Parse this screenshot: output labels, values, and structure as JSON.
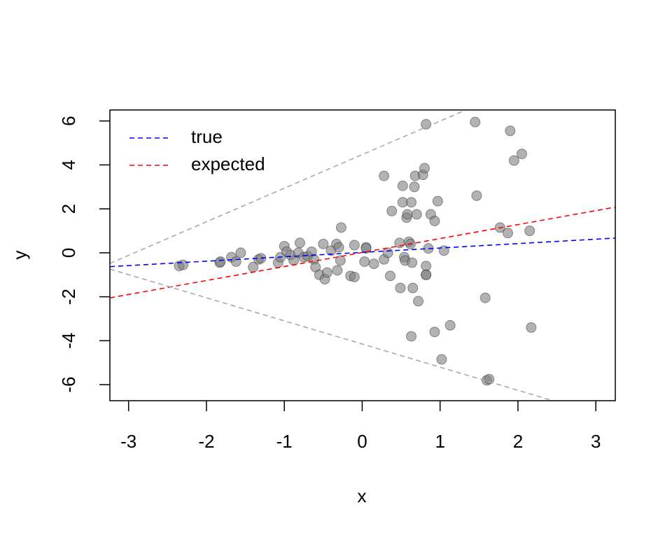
{
  "chart_data": {
    "type": "scatter",
    "x_label": "x",
    "y_label": "y",
    "xlim": [
      -3.24,
      3.25
    ],
    "ylim": [
      -6.73,
      6.5
    ],
    "xticks": [
      -3,
      -2,
      -1,
      0,
      1,
      2,
      3
    ],
    "yticks": [
      -6,
      -4,
      -2,
      0,
      2,
      4,
      6
    ],
    "legend": "top-left",
    "series": [
      {
        "type": "scatter",
        "color": "#7f7f7f",
        "x": [
          -2.35,
          -2.3,
          -1.83,
          -1.82,
          -1.68,
          -1.62,
          -1.56,
          -1.4,
          -1.33,
          -1.3,
          -1.08,
          -1.05,
          -1.0,
          -0.97,
          -0.92,
          -0.88,
          -0.82,
          -0.8,
          -0.75,
          -0.7,
          -0.65,
          -0.62,
          -0.6,
          -0.55,
          -0.5,
          -0.48,
          -0.45,
          -0.4,
          -0.33,
          -0.32,
          -0.3,
          -0.28,
          -0.27,
          -0.15,
          -0.1,
          -0.1,
          0.03,
          0.05,
          0.05,
          0.15,
          0.28,
          0.28,
          0.33,
          0.36,
          0.38,
          0.48,
          0.49,
          0.52,
          0.52,
          0.54,
          0.55,
          0.57,
          0.58,
          0.6,
          0.62,
          0.63,
          0.63,
          0.64,
          0.65,
          0.67,
          0.68,
          0.7,
          0.72,
          0.78,
          0.8,
          0.82,
          0.82,
          0.82,
          0.82,
          0.85,
          0.88,
          0.93,
          0.93,
          0.97,
          1.02,
          1.05,
          1.13,
          1.45,
          1.47,
          1.58,
          1.6,
          1.63,
          1.77,
          1.87,
          1.9,
          1.95,
          2.05,
          2.15,
          2.17
        ],
        "values": [
          -0.6,
          -0.55,
          -0.45,
          -0.4,
          -0.2,
          -0.4,
          0.0,
          -0.65,
          -0.3,
          -0.25,
          -0.45,
          -0.2,
          0.3,
          0.05,
          -0.1,
          -0.35,
          0.0,
          0.45,
          -0.2,
          -0.15,
          0.05,
          -0.3,
          -0.65,
          -1.0,
          0.4,
          -1.2,
          -0.9,
          0.1,
          0.4,
          -0.8,
          0.25,
          -0.35,
          1.15,
          -1.05,
          -1.1,
          0.35,
          -0.4,
          0.25,
          0.2,
          -0.5,
          3.5,
          -0.3,
          0.0,
          -1.05,
          1.9,
          0.45,
          -1.6,
          3.05,
          2.3,
          -0.2,
          -0.35,
          1.6,
          1.75,
          0.5,
          0.4,
          2.3,
          -3.8,
          -0.45,
          -1.6,
          3.0,
          3.5,
          1.75,
          -2.2,
          3.55,
          3.85,
          5.85,
          -0.6,
          -1.0,
          -1.0,
          0.2,
          1.75,
          1.45,
          -3.6,
          2.35,
          -4.85,
          0.1,
          -3.3,
          5.95,
          2.6,
          -2.05,
          -5.8,
          -5.75,
          1.15,
          0.9,
          5.55,
          4.2,
          4.5,
          1.0,
          -3.4
        ]
      },
      {
        "type": "line",
        "name": "true",
        "color": "#0000ff",
        "x": [
          -3.24,
          3.25
        ],
        "values": [
          -0.63,
          0.67
        ]
      },
      {
        "type": "line",
        "name": "expected",
        "color": "#ff0000",
        "x": [
          -3.24,
          3.25
        ],
        "values": [
          -2.05,
          2.08
        ]
      },
      {
        "type": "line",
        "color": "#a9a9a9",
        "x": [
          -3.24,
          1.33
        ],
        "values": [
          -0.48,
          6.5
        ]
      },
      {
        "type": "line",
        "color": "#a9a9a9",
        "x": [
          -3.24,
          2.45
        ],
        "values": [
          -0.74,
          -6.73
        ]
      }
    ]
  }
}
